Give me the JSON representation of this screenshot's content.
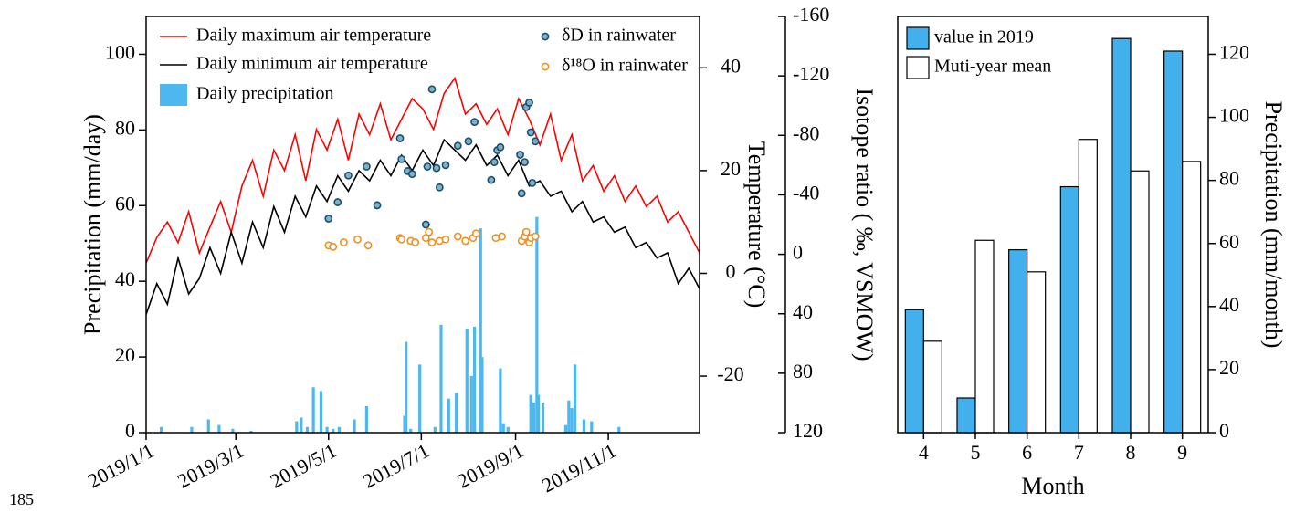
{
  "footer_text": "185",
  "chart_data": [
    {
      "type": "combo",
      "y_label": "Precipitation (mm/day)",
      "y2_label": "Temperature (°C)",
      "y3_label": "Isotope ratio ( ‰, VSMOW)",
      "xlim": [
        "2019/1/1",
        "2019/12/31"
      ],
      "xticks": [
        "2019/1/1",
        "2019/3/1",
        "2019/5/1",
        "2019/7/1",
        "2019/9/1",
        "2019/11/1"
      ],
      "ylim": [
        0,
        110
      ],
      "yticks": [
        0,
        20,
        40,
        60,
        80,
        100
      ],
      "y2lim": [
        -31,
        50
      ],
      "y2ticks": [
        -20,
        0,
        20,
        40
      ],
      "y3lim": [
        120,
        -160
      ],
      "y3ticks": [
        -160,
        -120,
        -80,
        -40,
        0,
        40,
        80,
        120
      ],
      "series": [
        {
          "name": "Daily maximum air temperature",
          "type": "line",
          "axis": "y2",
          "color": "#ff0000",
          "x": [
            "2019/1/1",
            "2019/1/8",
            "2019/1/15",
            "2019/1/22",
            "2019/1/29",
            "2019/2/5",
            "2019/2/12",
            "2019/2/19",
            "2019/2/26",
            "2019/3/5",
            "2019/3/12",
            "2019/3/19",
            "2019/3/26",
            "2019/4/2",
            "2019/4/9",
            "2019/4/16",
            "2019/4/23",
            "2019/4/30",
            "2019/5/7",
            "2019/5/14",
            "2019/5/21",
            "2019/5/28",
            "2019/6/4",
            "2019/6/11",
            "2019/6/18",
            "2019/6/25",
            "2019/7/2",
            "2019/7/9",
            "2019/7/16",
            "2019/7/23",
            "2019/7/30",
            "2019/8/6",
            "2019/8/13",
            "2019/8/20",
            "2019/8/27",
            "2019/9/3",
            "2019/9/10",
            "2019/9/17",
            "2019/9/24",
            "2019/10/1",
            "2019/10/8",
            "2019/10/15",
            "2019/10/22",
            "2019/10/29",
            "2019/11/5",
            "2019/11/12",
            "2019/11/19",
            "2019/11/26",
            "2019/12/3",
            "2019/12/10",
            "2019/12/17",
            "2019/12/24",
            "2019/12/31"
          ],
          "values": [
            2,
            7,
            10,
            6,
            12,
            4,
            9,
            14,
            8,
            17,
            22,
            15,
            24,
            20,
            27,
            18,
            28,
            24,
            30,
            22,
            31,
            27,
            33,
            26,
            30,
            34,
            32,
            28,
            35,
            38,
            31,
            33,
            29,
            32,
            27,
            34,
            30,
            25,
            31,
            22,
            27,
            18,
            21,
            16,
            19,
            14,
            17,
            13,
            15,
            10,
            12,
            8,
            4
          ]
        },
        {
          "name": "Daily minimum air temperature",
          "type": "line",
          "axis": "y2",
          "color": "#000000",
          "x": [
            "2019/1/1",
            "2019/1/8",
            "2019/1/15",
            "2019/1/22",
            "2019/1/29",
            "2019/2/5",
            "2019/2/12",
            "2019/2/19",
            "2019/2/26",
            "2019/3/5",
            "2019/3/12",
            "2019/3/19",
            "2019/3/26",
            "2019/4/2",
            "2019/4/9",
            "2019/4/16",
            "2019/4/23",
            "2019/4/30",
            "2019/5/7",
            "2019/5/14",
            "2019/5/21",
            "2019/5/28",
            "2019/6/4",
            "2019/6/11",
            "2019/6/18",
            "2019/6/25",
            "2019/7/2",
            "2019/7/9",
            "2019/7/16",
            "2019/7/23",
            "2019/7/30",
            "2019/8/6",
            "2019/8/13",
            "2019/8/20",
            "2019/8/27",
            "2019/9/3",
            "2019/9/10",
            "2019/9/17",
            "2019/9/24",
            "2019/10/1",
            "2019/10/8",
            "2019/10/15",
            "2019/10/22",
            "2019/10/29",
            "2019/11/5",
            "2019/11/12",
            "2019/11/19",
            "2019/11/26",
            "2019/12/3",
            "2019/12/10",
            "2019/12/17",
            "2019/12/24",
            "2019/12/31"
          ],
          "values": [
            -8,
            -2,
            -6,
            3,
            -4,
            -1,
            5,
            0,
            8,
            2,
            10,
            5,
            13,
            8,
            15,
            11,
            17,
            14,
            19,
            16,
            20,
            18,
            22,
            19,
            23,
            20,
            24,
            21,
            26,
            24,
            22,
            25,
            21,
            23,
            19,
            22,
            17,
            18,
            15,
            16,
            12,
            14,
            10,
            11,
            8,
            9,
            5,
            6,
            3,
            4,
            -2,
            1,
            -3
          ]
        },
        {
          "name": "Daily precipitation",
          "type": "bar",
          "axis": "y",
          "color": "#4db8f0",
          "x": [
            "2019/1/11",
            "2019/1/31",
            "2019/2/11",
            "2019/2/18",
            "2019/2/27",
            "2019/3/11",
            "2019/4/10",
            "2019/4/13",
            "2019/4/17",
            "2019/4/21",
            "2019/4/26",
            "2019/4/30",
            "2019/5/4",
            "2019/5/8",
            "2019/5/18",
            "2019/5/26",
            "2019/6/20",
            "2019/6/21",
            "2019/6/24",
            "2019/6/30",
            "2019/7/10",
            "2019/7/14",
            "2019/7/19",
            "2019/7/24",
            "2019/7/31",
            "2019/8/3",
            "2019/8/5",
            "2019/8/9",
            "2019/8/10",
            "2019/8/22",
            "2019/8/24",
            "2019/8/27",
            "2019/9/11",
            "2019/9/13",
            "2019/9/15",
            "2019/9/16",
            "2019/9/19",
            "2019/10/4",
            "2019/10/6",
            "2019/10/8",
            "2019/10/10",
            "2019/10/16",
            "2019/10/21",
            "2019/11/8"
          ],
          "values": [
            1.5,
            1.5,
            3.5,
            2,
            1,
            0.5,
            3,
            4,
            1.5,
            12,
            11,
            1.5,
            1,
            1.5,
            3.5,
            7,
            4.5,
            24,
            1,
            18,
            1.5,
            28.5,
            9,
            10.5,
            27.5,
            15,
            28,
            54,
            20,
            17,
            2.5,
            1.5,
            10,
            8,
            57,
            10,
            8,
            2,
            8.5,
            6.5,
            18,
            3.5,
            3,
            1.5
          ]
        },
        {
          "name": "δD in rainwater",
          "type": "scatter",
          "axis": "y3",
          "color": "#1a4f6e",
          "x": [
            "2019/5/1",
            "2019/5/7",
            "2019/5/14",
            "2019/5/26",
            "2019/6/2",
            "2019/6/17",
            "2019/6/18",
            "2019/6/22",
            "2019/6/25",
            "2019/7/4",
            "2019/7/5",
            "2019/7/8",
            "2019/7/11",
            "2019/7/13",
            "2019/7/17",
            "2019/7/25",
            "2019/8/1",
            "2019/8/5",
            "2019/8/16",
            "2019/8/18",
            "2019/8/20",
            "2019/8/22",
            "2019/9/4",
            "2019/9/5",
            "2019/9/7",
            "2019/9/8",
            "2019/9/10",
            "2019/9/11",
            "2019/9/12",
            "2019/9/14"
          ],
          "values": [
            -24,
            -35,
            -53,
            -59,
            -33,
            -78,
            -64,
            -56,
            -54,
            -20,
            -59,
            -111,
            -58,
            -45,
            -60,
            -73,
            -76,
            -89,
            -50,
            -62,
            -70,
            -72,
            -67,
            -41,
            -62,
            -99,
            -102,
            -82,
            -48,
            -76
          ]
        },
        {
          "name": "δ¹⁸O in rainwater",
          "type": "scatter",
          "axis": "y3",
          "color": "#f0901e",
          "x": [
            "2019/5/1",
            "2019/5/4",
            "2019/5/11",
            "2019/5/20",
            "2019/5/27",
            "2019/6/17",
            "2019/6/18",
            "2019/6/24",
            "2019/6/27",
            "2019/7/4",
            "2019/7/6",
            "2019/7/8",
            "2019/7/13",
            "2019/7/17",
            "2019/7/25",
            "2019/7/30",
            "2019/8/4",
            "2019/8/6",
            "2019/8/19",
            "2019/8/23",
            "2019/9/5",
            "2019/9/7",
            "2019/9/8",
            "2019/9/10",
            "2019/9/11",
            "2019/9/14"
          ],
          "values": [
            -6,
            -5,
            -8,
            -10,
            -6,
            -11,
            -10,
            -9,
            -8,
            -11,
            -15,
            -8,
            -9,
            -10,
            -12,
            -9,
            -11,
            -14,
            -11,
            -12,
            -9,
            -12,
            -15,
            -8,
            -11,
            -12
          ]
        }
      ]
    },
    {
      "type": "bar",
      "x_label": "Month",
      "y_label": "Precipitation (mm/month)",
      "categories": [
        "4",
        "5",
        "6",
        "7",
        "8",
        "9"
      ],
      "ylim": [
        0,
        132
      ],
      "yticks": [
        0,
        20,
        40,
        60,
        80,
        100,
        120
      ],
      "series": [
        {
          "name": "value in 2019",
          "color": "#41b0ec",
          "values": [
            39,
            11,
            58,
            78,
            125,
            121
          ]
        },
        {
          "name": "Muti-year mean",
          "color": "#ffffff",
          "values": [
            29,
            61,
            51,
            93,
            83,
            86
          ]
        }
      ]
    }
  ]
}
